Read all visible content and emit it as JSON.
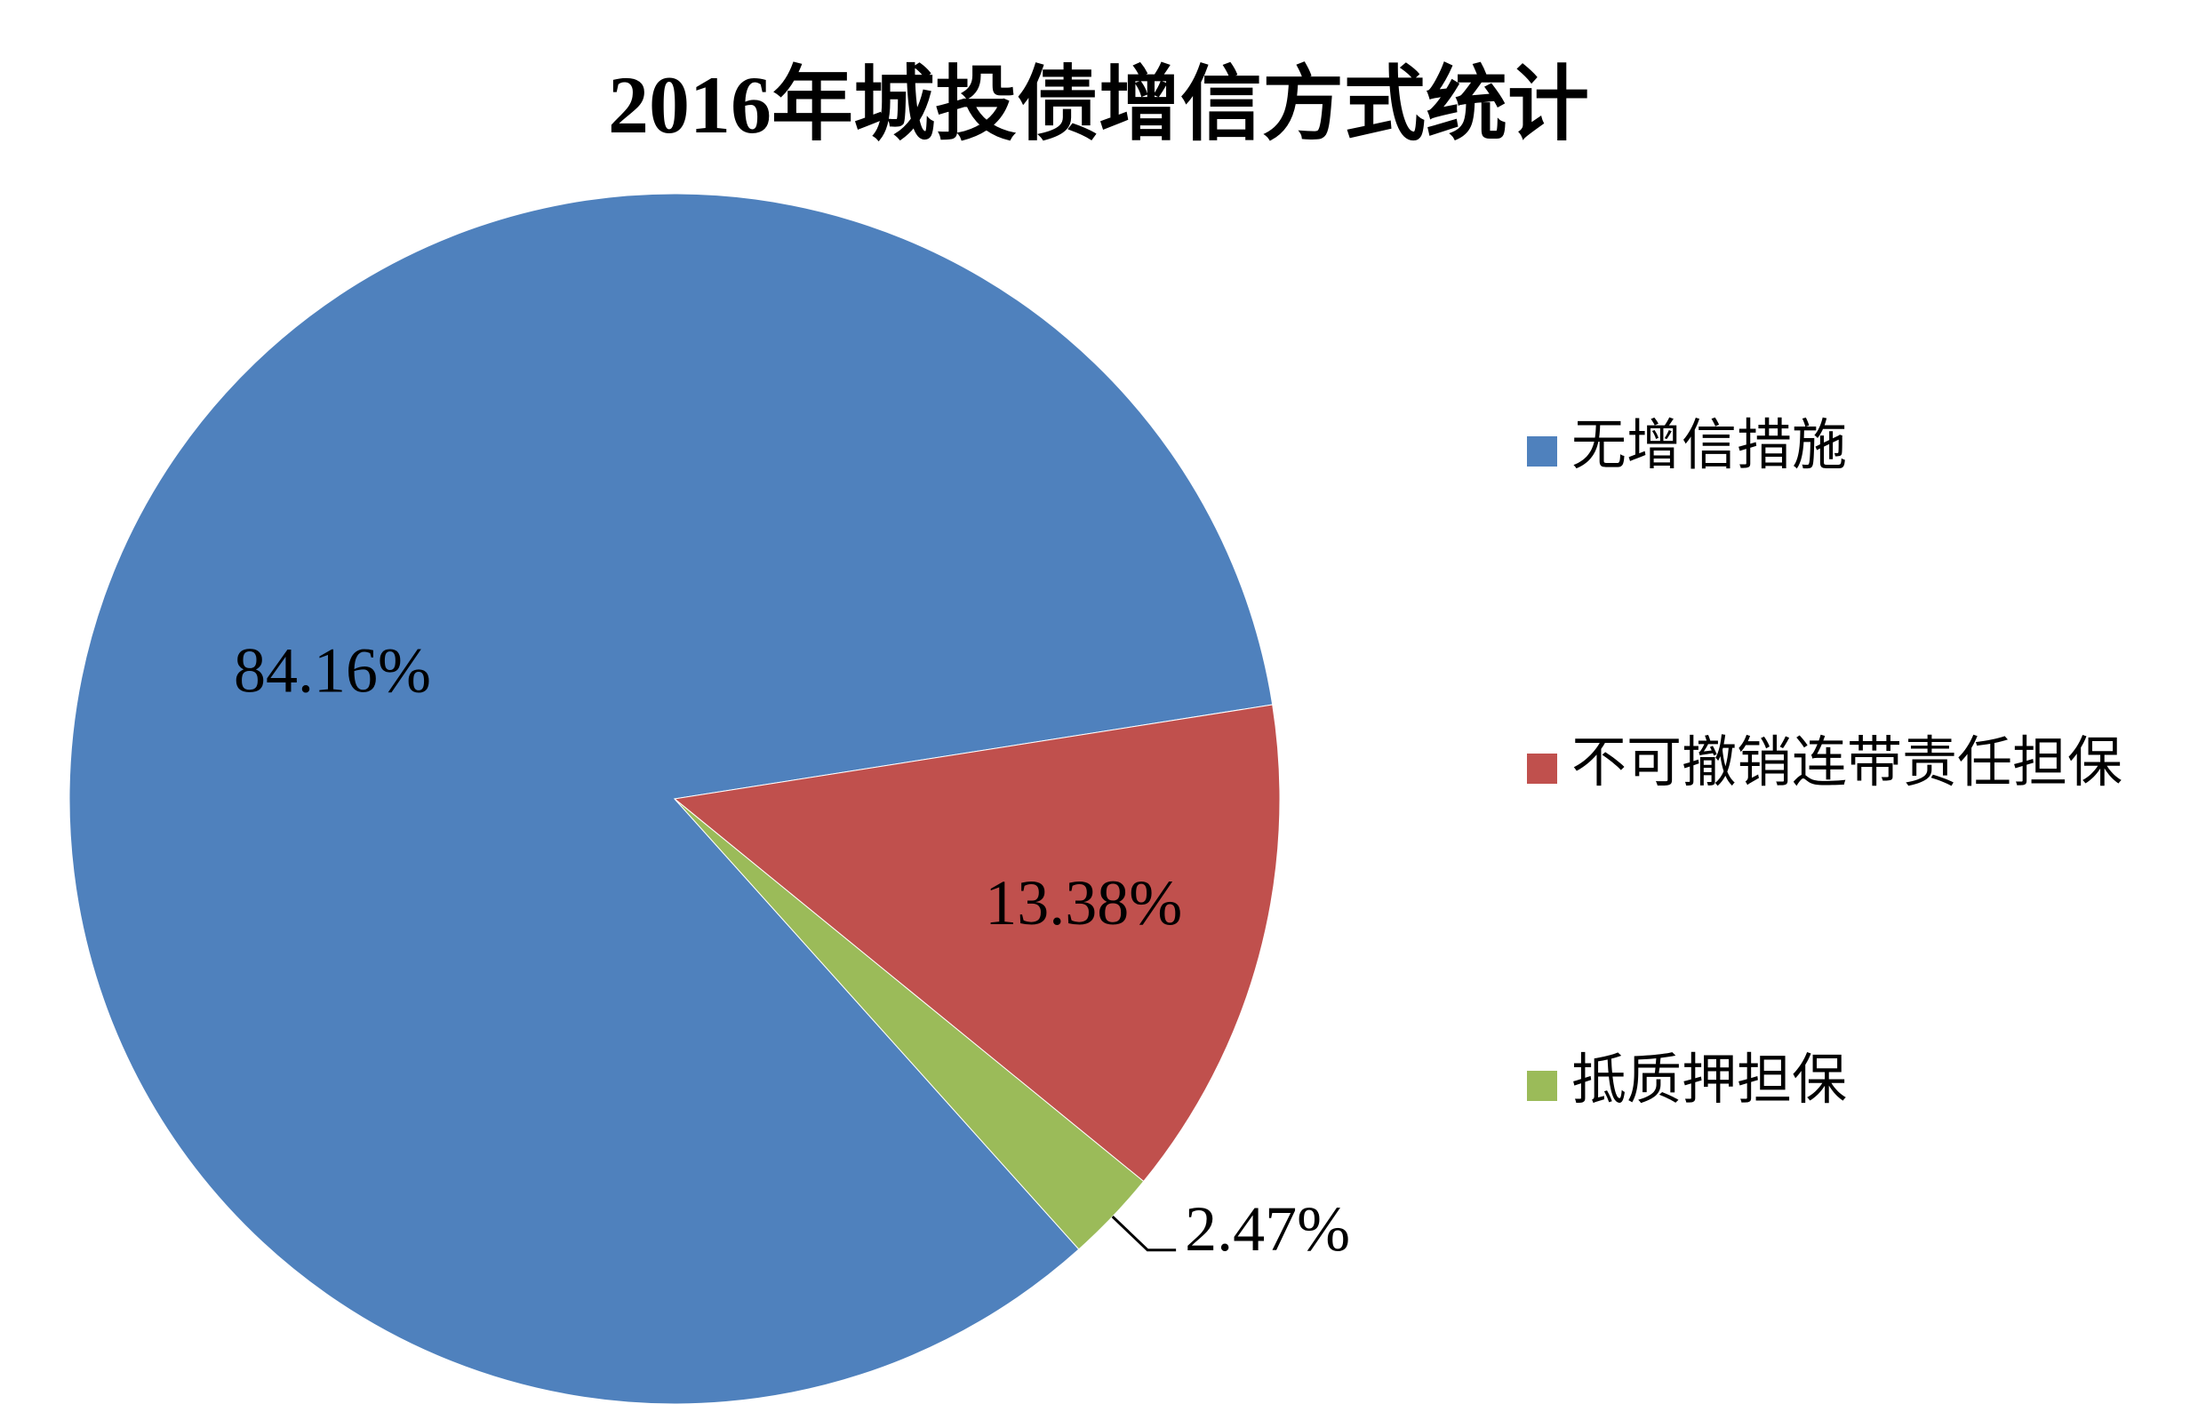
{
  "chart_data": {
    "type": "pie",
    "title": "2016年城投债增信方式统计",
    "categories": [
      "无增信措施",
      "不可撤销连带责任担保",
      "抵质押担保"
    ],
    "values": [
      84.16,
      13.38,
      2.47
    ],
    "value_labels": [
      "84.16%",
      "13.38%",
      "2.47%"
    ],
    "colors": [
      "#4F81BD",
      "#C0504D",
      "#9BBB59"
    ],
    "legend": "right"
  }
}
